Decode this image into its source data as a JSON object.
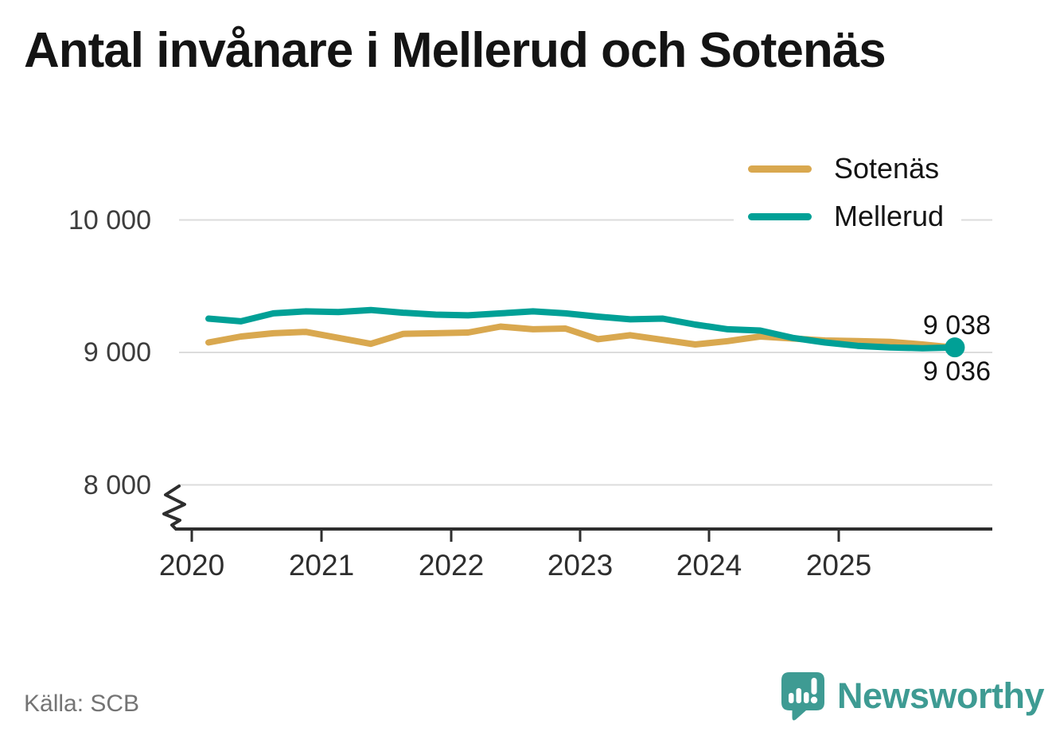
{
  "title": "Antal invånare i Mellerud och Sotenäs",
  "source": "Källa: SCB",
  "logo": {
    "wordmark": "Newsworthy",
    "color": "#3E9B93",
    "icon": "newsworthy-speech-bubble-bar-chart-icon"
  },
  "legend": [
    {
      "label": "Sotenäs",
      "color": "#D9A84F"
    },
    {
      "label": "Mellerud",
      "color": "#00A096"
    }
  ],
  "chart_data": {
    "type": "line",
    "title": "Antal invånare i Mellerud och Sotenäs",
    "xlabel": "",
    "ylabel": "",
    "grid": "horizontal",
    "legend_position": "top-right",
    "axis_break": true,
    "ylim": [
      7800,
      10400
    ],
    "x": [
      "2020-Q1",
      "2020-Q2",
      "2020-Q3",
      "2020-Q4",
      "2021-Q1",
      "2021-Q2",
      "2021-Q3",
      "2021-Q4",
      "2022-Q1",
      "2022-Q2",
      "2022-Q3",
      "2022-Q4",
      "2023-Q1",
      "2023-Q2",
      "2023-Q3",
      "2023-Q4",
      "2024-Q1",
      "2024-Q2",
      "2024-Q3",
      "2024-Q4",
      "2025-Q1",
      "2025-Q2",
      "2025-Q3",
      "2025-Q4"
    ],
    "xticks": [
      {
        "label": "2020"
      },
      {
        "label": "2021"
      },
      {
        "label": "2022"
      },
      {
        "label": "2023"
      },
      {
        "label": "2024"
      },
      {
        "label": "2025"
      }
    ],
    "yticks": [
      {
        "label": "8 000",
        "value": 8000
      },
      {
        "label": "9 000",
        "value": 9000
      },
      {
        "label": "10 000",
        "value": 10000
      }
    ],
    "series": [
      {
        "name": "Sotenäs",
        "color": "#D9A84F",
        "end_label": "9 036",
        "end_dot": false,
        "values": [
          9075,
          9120,
          9145,
          9155,
          9110,
          9065,
          9140,
          9145,
          9150,
          9195,
          9175,
          9180,
          9100,
          9130,
          9095,
          9060,
          9085,
          9120,
          9105,
          9090,
          9085,
          9080,
          9060,
          9036
        ]
      },
      {
        "name": "Mellerud",
        "color": "#00A096",
        "end_label": "9 038",
        "end_dot": true,
        "values": [
          9255,
          9235,
          9295,
          9310,
          9305,
          9320,
          9300,
          9285,
          9280,
          9295,
          9310,
          9295,
          9270,
          9250,
          9255,
          9210,
          9175,
          9165,
          9110,
          9075,
          9050,
          9038,
          9032,
          9038
        ]
      }
    ]
  }
}
